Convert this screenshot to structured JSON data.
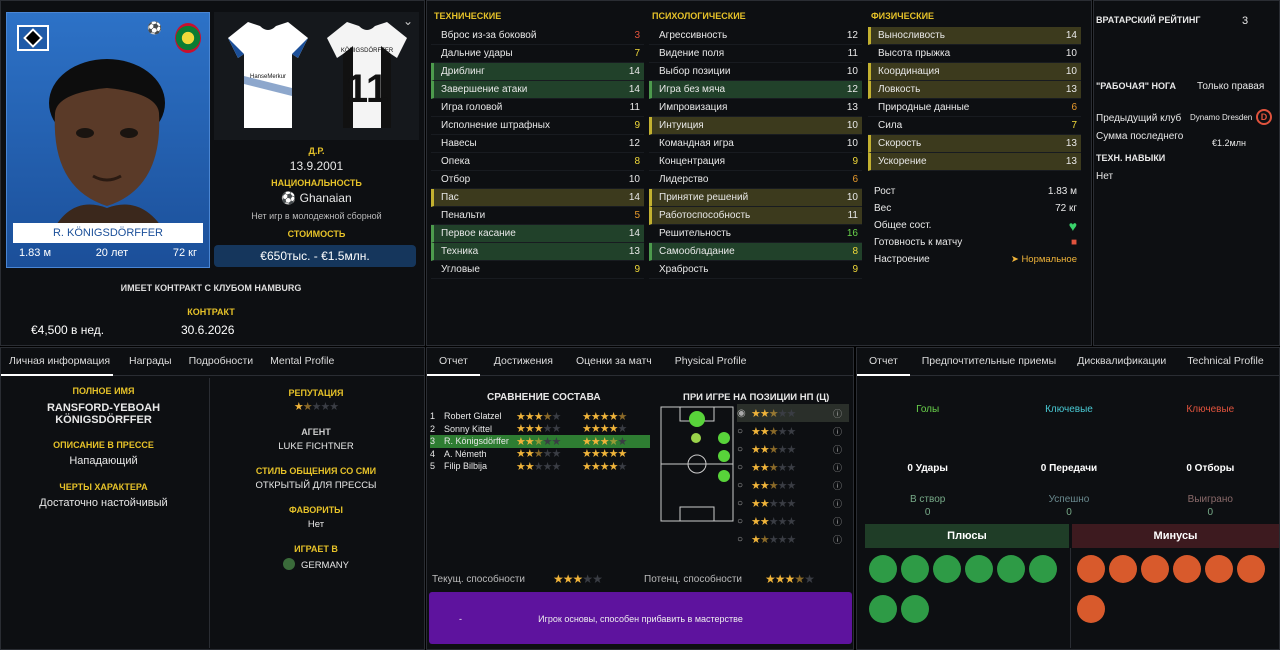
{
  "profile": {
    "player_name": "R. KÖNIGSDÖRFFER",
    "height": "1.83 м",
    "age": "20 лет",
    "weight": "72 кг",
    "dob_label": "Д.Р.",
    "dob": "13.9.2001",
    "nationality_label": "НАЦИОНАЛЬНОСТЬ",
    "nationality": "Ghanaian",
    "youth_caps": "Нет игр в молодежной сборной",
    "value_label": "СТОИМОСТЬ",
    "value": "€650тыс. - €1.5млн.",
    "contract_with": "ИМЕЕТ КОНТРАКТ С КЛУБОМ HAMBURG",
    "wage": "€4,500 в нед.",
    "contract_label": "КОНТРАКТ",
    "contract_end": "30.6.2026",
    "kit_name": "KÖNIGSDÖRFFER",
    "kit_number": "11",
    "kit_sponsor": "HanseMerkur"
  },
  "attributes": {
    "technical": {
      "title": "ТЕХНИЧЕСКИЕ",
      "rows": [
        {
          "name": "Вброс из-за боковой",
          "value": "3",
          "color": "red",
          "hl": ""
        },
        {
          "name": "Дальние удары",
          "value": "7",
          "color": "yel",
          "hl": ""
        },
        {
          "name": "Дриблинг",
          "value": "14",
          "color": "",
          "hl": "g"
        },
        {
          "name": "Завершение атаки",
          "value": "14",
          "color": "",
          "hl": "g"
        },
        {
          "name": "Игра головой",
          "value": "11",
          "color": "",
          "hl": ""
        },
        {
          "name": "Исполнение штрафных",
          "value": "9",
          "color": "yel",
          "hl": ""
        },
        {
          "name": "Навесы",
          "value": "12",
          "color": "",
          "hl": ""
        },
        {
          "name": "Опека",
          "value": "8",
          "color": "yel",
          "hl": ""
        },
        {
          "name": "Отбор",
          "value": "10",
          "color": "",
          "hl": ""
        },
        {
          "name": "Пас",
          "value": "14",
          "color": "",
          "hl": "y"
        },
        {
          "name": "Пенальти",
          "value": "5",
          "color": "org",
          "hl": ""
        },
        {
          "name": "Первое касание",
          "value": "14",
          "color": "",
          "hl": "g"
        },
        {
          "name": "Техника",
          "value": "13",
          "color": "",
          "hl": "g"
        },
        {
          "name": "Угловые",
          "value": "9",
          "color": "yel",
          "hl": ""
        }
      ]
    },
    "mental": {
      "title": "ПСИХОЛОГИЧЕСКИЕ",
      "rows": [
        {
          "name": "Агрессивность",
          "value": "12",
          "color": "",
          "hl": ""
        },
        {
          "name": "Видение поля",
          "value": "11",
          "color": "",
          "hl": ""
        },
        {
          "name": "Выбор позиции",
          "value": "10",
          "color": "",
          "hl": ""
        },
        {
          "name": "Игра без мяча",
          "value": "12",
          "color": "",
          "hl": "g"
        },
        {
          "name": "Импровизация",
          "value": "13",
          "color": "",
          "hl": ""
        },
        {
          "name": "Интуиция",
          "value": "10",
          "color": "",
          "hl": "y"
        },
        {
          "name": "Командная игра",
          "value": "10",
          "color": "",
          "hl": ""
        },
        {
          "name": "Концентрация",
          "value": "9",
          "color": "yel",
          "hl": ""
        },
        {
          "name": "Лидерство",
          "value": "6",
          "color": "org",
          "hl": ""
        },
        {
          "name": "Принятие решений",
          "value": "10",
          "color": "",
          "hl": "y"
        },
        {
          "name": "Работоспособность",
          "value": "11",
          "color": "",
          "hl": "y"
        },
        {
          "name": "Решительность",
          "value": "16",
          "color": "grn",
          "hl": ""
        },
        {
          "name": "Самообладание",
          "value": "8",
          "color": "yel",
          "hl": "g"
        },
        {
          "name": "Храбрость",
          "value": "9",
          "color": "yel",
          "hl": ""
        }
      ]
    },
    "physical": {
      "title": "ФИЗИЧЕСКИЕ",
      "rows": [
        {
          "name": "Выносливость",
          "value": "14",
          "color": "",
          "hl": "y"
        },
        {
          "name": "Высота прыжка",
          "value": "10",
          "color": "",
          "hl": ""
        },
        {
          "name": "Координация",
          "value": "10",
          "color": "",
          "hl": "y"
        },
        {
          "name": "Ловкость",
          "value": "13",
          "color": "",
          "hl": "y"
        },
        {
          "name": "Природные данные",
          "value": "6",
          "color": "org",
          "hl": ""
        },
        {
          "name": "Сила",
          "value": "7",
          "color": "yel",
          "hl": ""
        },
        {
          "name": "Скорость",
          "value": "13",
          "color": "",
          "hl": "y"
        },
        {
          "name": "Ускорение",
          "value": "13",
          "color": "",
          "hl": "y"
        }
      ]
    },
    "physical_extra": [
      {
        "name": "Рост",
        "value": "1.83 м"
      },
      {
        "name": "Вес",
        "value": "72 кг"
      },
      {
        "name": "Общее сост.",
        "value": ""
      },
      {
        "name": "Готовность к матчу",
        "value": ""
      },
      {
        "name": "Настроение",
        "value": "Нормальное"
      }
    ]
  },
  "side": {
    "gk_label": "ВРАТАРСКИЙ РЕЙТИНГ",
    "gk_value": "3",
    "foot_label": "\"РАБОЧАЯ\" НОГА",
    "foot_value": "Только правая",
    "prev_club_label": "Предыдущий клуб",
    "prev_club": "Dynamo Dresden",
    "fee_label": "Сумма последнего",
    "fee_value": "€1.2млн",
    "tech_label": "ТЕХН. НАВЫКИ",
    "tech_value": "Нет"
  },
  "personal": {
    "tabs": [
      "Личная информация",
      "Награды",
      "Подробности",
      "Mental Profile"
    ],
    "fullname_label": "ПОЛНОЕ ИМЯ",
    "fullname": "RANSFORD-YEBOAH KÖNIGSDÖRFFER",
    "press_label": "ОПИСАНИЕ В ПРЕССЕ",
    "press": "Нападающий",
    "traits_label": "ЧЕРТЫ ХАРАКТЕРА",
    "traits": "Достаточно настойчивый",
    "rep_label": "РЕПУТАЦИЯ",
    "agent_label": "АГЕНТ",
    "agent": "LUKE FICHTNER",
    "media_label": "СТИЛЬ ОБЩЕНИЯ СО СМИ",
    "media": "ОТКРЫТЫЙ ДЛЯ ПРЕССЫ",
    "fav_label": "ФАВОРИТЫ",
    "fav": "Нет",
    "plays_label": "ИГРАЕТ В",
    "plays": "GERMANY"
  },
  "report": {
    "tabs": [
      "Отчет",
      "Достижения",
      "Оценки за матч",
      "Physical Profile"
    ],
    "squad_title": "СРАВНЕНИЕ СОСТАВА",
    "position_title": "ПРИ ИГРЕ НА ПОЗИЦИИ НП (Ц)",
    "squad": [
      {
        "n": "1",
        "name": "Robert Glatzel",
        "a": 3.5,
        "b": 4.5
      },
      {
        "n": "2",
        "name": "Sonny Kittel",
        "a": 3,
        "b": 4
      },
      {
        "n": "3",
        "name": "R. Königsdörffer",
        "a": 2.5,
        "b": 3.5
      },
      {
        "n": "4",
        "name": "A. Németh",
        "a": 2.5,
        "b": 5
      },
      {
        "n": "5",
        "name": "Filip Bilbija",
        "a": 2,
        "b": 4
      }
    ],
    "pos_ratings": [
      2.5,
      2.5,
      2.5,
      2.5,
      2.5,
      2,
      2,
      1.5
    ],
    "current_label": "Текущ. способности",
    "current": 3,
    "potential_label": "Потенц. способности",
    "potential": 3.5,
    "summary_dash": "-",
    "summary": "Игрок основы, способен прибавить в мастерстве"
  },
  "stats": {
    "tabs": [
      "Отчет",
      "Предпочтительные приемы",
      "Дисквалификации",
      "Technical Profile"
    ],
    "cols": [
      {
        "title": "Голы",
        "count": "0 Удары",
        "sub": "В створ",
        "subval": "0",
        "color": "#6ad34b"
      },
      {
        "title": "Ключевые",
        "count": "0 Передачи",
        "sub": "Успешно",
        "subval": "0",
        "color": "#49c9d3"
      },
      {
        "title": "Ключевые",
        "count": "0 Отборы",
        "sub": "Выиграно",
        "subval": "0",
        "color": "#e0533d"
      }
    ],
    "plus_label": "Плюсы",
    "minus_label": "Минусы"
  }
}
